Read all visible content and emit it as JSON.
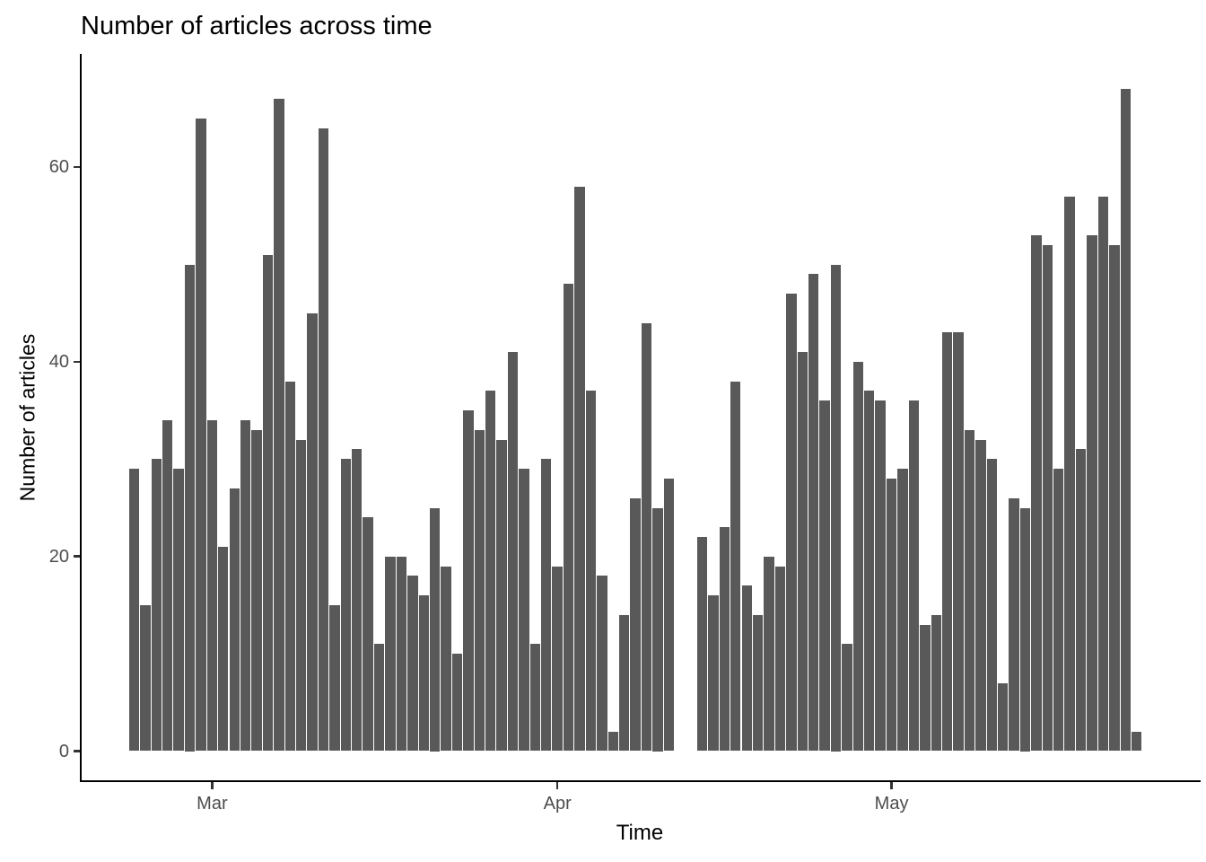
{
  "title": "Number of articles across time",
  "chart_data": {
    "type": "bar",
    "title": "Number of articles across time",
    "xlabel": "Time",
    "ylabel": "Number of articles",
    "x_tick_labels": [
      "Mar",
      "Apr",
      "May"
    ],
    "x_tick_dates": [
      "Mar 1",
      "Apr 1",
      "May 1"
    ],
    "y_ticks": [
      0,
      20,
      40,
      60
    ],
    "ylim": [
      0,
      71.7
    ],
    "grid": "off",
    "legend": "none",
    "bar_color": "#595959",
    "tick_label_color": "#4D4D4D",
    "axis_color": "#000000",
    "missing_dates": [
      "Apr 12",
      "Apr 13"
    ],
    "x": [
      "Feb 22",
      "Feb 23",
      "Feb 24",
      "Feb 25",
      "Feb 26",
      "Feb 27",
      "Feb 28",
      "Mar 1",
      "Mar 2",
      "Mar 3",
      "Mar 4",
      "Mar 5",
      "Mar 6",
      "Mar 7",
      "Mar 8",
      "Mar 9",
      "Mar 10",
      "Mar 11",
      "Mar 12",
      "Mar 13",
      "Mar 14",
      "Mar 15",
      "Mar 16",
      "Mar 17",
      "Mar 18",
      "Mar 19",
      "Mar 20",
      "Mar 21",
      "Mar 22",
      "Mar 23",
      "Mar 24",
      "Mar 25",
      "Mar 26",
      "Mar 27",
      "Mar 28",
      "Mar 29",
      "Mar 30",
      "Mar 31",
      "Apr 1",
      "Apr 2",
      "Apr 3",
      "Apr 4",
      "Apr 5",
      "Apr 6",
      "Apr 7",
      "Apr 8",
      "Apr 9",
      "Apr 10",
      "Apr 11",
      "Apr 12",
      "Apr 13",
      "Apr 14",
      "Apr 15",
      "Apr 16",
      "Apr 17",
      "Apr 18",
      "Apr 19",
      "Apr 20",
      "Apr 21",
      "Apr 22",
      "Apr 23",
      "Apr 24",
      "Apr 25",
      "Apr 26",
      "Apr 27",
      "Apr 28",
      "Apr 29",
      "Apr 30",
      "May 1",
      "May 2",
      "May 3",
      "May 4",
      "May 5",
      "May 6",
      "May 7",
      "May 8",
      "May 9",
      "May 10",
      "May 11",
      "May 12",
      "May 13",
      "May 14",
      "May 15",
      "May 16",
      "May 17",
      "May 18",
      "May 19",
      "May 20",
      "May 21",
      "May 22",
      "May 23"
    ],
    "values": [
      29,
      15,
      30,
      34,
      29,
      50,
      65,
      34,
      21,
      27,
      34,
      33,
      51,
      67,
      38,
      32,
      45,
      64,
      15,
      30,
      31,
      24,
      11,
      20,
      20,
      18,
      16,
      25,
      19,
      10,
      35,
      33,
      37,
      32,
      41,
      29,
      11,
      30,
      19,
      48,
      58,
      37,
      18,
      2,
      14,
      26,
      44,
      25,
      28,
      null,
      null,
      22,
      16,
      23,
      38,
      17,
      14,
      20,
      19,
      47,
      41,
      49,
      36,
      50,
      11,
      40,
      37,
      36,
      28,
      29,
      36,
      13,
      14,
      43,
      43,
      33,
      32,
      30,
      7,
      26,
      25,
      53,
      52,
      29,
      57,
      31,
      53,
      57,
      52,
      68,
      2
    ]
  }
}
